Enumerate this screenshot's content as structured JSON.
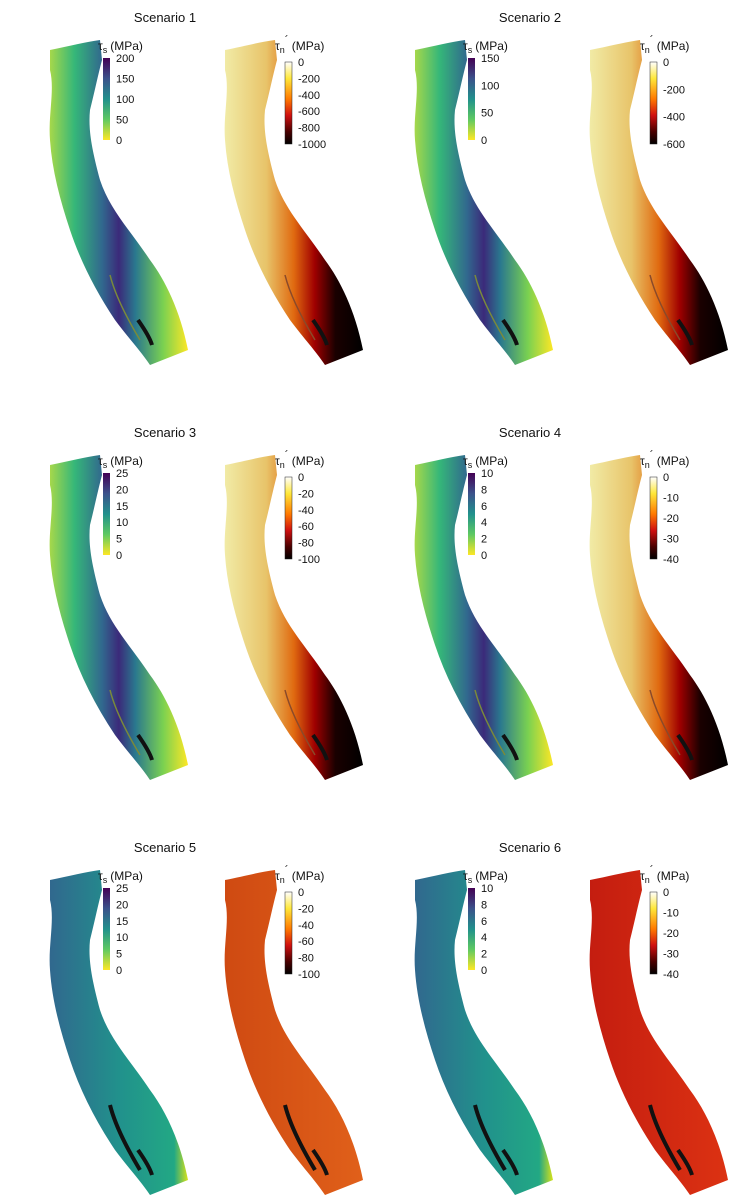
{
  "scenarios": [
    {
      "title": "Scenario 1",
      "shear": {
        "label_main": "τ",
        "label_sub": "s",
        "unit": "(MPa)",
        "ticks": [
          "200",
          "150",
          "100",
          "50",
          "0"
        ]
      },
      "normal": {
        "label_main": "τ",
        "label_sub": "n",
        "prime": "´",
        "unit": "(MPa)",
        "ticks": [
          "0",
          "-200",
          "-400",
          "-600",
          "-800",
          "-1000"
        ]
      }
    },
    {
      "title": "Scenario 2",
      "shear": {
        "label_main": "τ",
        "label_sub": "s",
        "unit": "(MPa)",
        "ticks": [
          "150",
          "100",
          "50",
          "0"
        ]
      },
      "normal": {
        "label_main": "τ",
        "label_sub": "n",
        "prime": "´",
        "unit": "(MPa)",
        "ticks": [
          "0",
          "-200",
          "-400",
          "-600"
        ]
      }
    },
    {
      "title": "Scenario 3",
      "shear": {
        "label_main": "τ",
        "label_sub": "s",
        "unit": "(MPa)",
        "ticks": [
          "25",
          "20",
          "15",
          "10",
          "5",
          "0"
        ]
      },
      "normal": {
        "label_main": "τ",
        "label_sub": "n",
        "prime": "´",
        "unit": "(MPa)",
        "ticks": [
          "0",
          "-20",
          "-40",
          "-60",
          "-80",
          "-100"
        ]
      }
    },
    {
      "title": "Scenario 4",
      "shear": {
        "label_main": "τ",
        "label_sub": "s",
        "unit": "(MPa)",
        "ticks": [
          "10",
          "8",
          "6",
          "4",
          "2",
          "0"
        ]
      },
      "normal": {
        "label_main": "τ",
        "label_sub": "n",
        "prime": "´",
        "unit": "(MPa)",
        "ticks": [
          "0",
          "-10",
          "-20",
          "-30",
          "-40"
        ]
      }
    },
    {
      "title": "Scenario 5",
      "shear": {
        "label_main": "τ",
        "label_sub": "s",
        "unit": "(MPa)",
        "ticks": [
          "25",
          "20",
          "15",
          "10",
          "5",
          "0"
        ]
      },
      "normal": {
        "label_main": "τ",
        "label_sub": "n",
        "prime": "´",
        "unit": "(MPa)",
        "ticks": [
          "0",
          "-20",
          "-40",
          "-60",
          "-80",
          "-100"
        ]
      }
    },
    {
      "title": "Scenario 6",
      "shear": {
        "label_main": "τ",
        "label_sub": "s",
        "unit": "(MPa)",
        "ticks": [
          "10",
          "8",
          "6",
          "4",
          "2",
          "0"
        ]
      },
      "normal": {
        "label_main": "τ",
        "label_sub": "n",
        "prime": "´",
        "unit": "(MPa)",
        "ticks": [
          "0",
          "-10",
          "-20",
          "-30",
          "-40"
        ]
      }
    }
  ]
}
